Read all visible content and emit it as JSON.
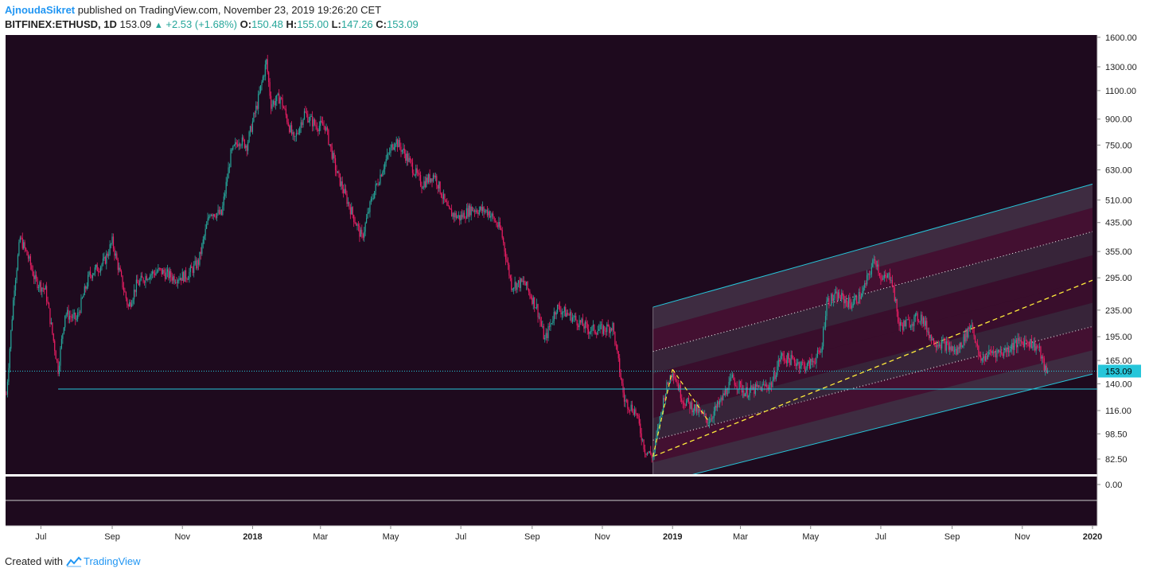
{
  "header": {
    "author": "AjnoudaSikret",
    "published_text": "published on TradingView.com, November 23, 2019 19:26:20 CET",
    "symbol": "BITFINEX:ETHUSD, 1D",
    "last": "153.09",
    "change": "+2.53 (+1.68%)",
    "o_label": "O:",
    "o": "150.48",
    "h_label": "H:",
    "h": "155.00",
    "l_label": "L:",
    "l": "147.26",
    "c_label": "C:",
    "c": "153.09"
  },
  "footer": {
    "created_with": "Created with",
    "brand": "TradingView"
  },
  "colors": {
    "background": "#1e0a1e",
    "up": "#26a69a",
    "down": "#e91e63",
    "channel_edge": "#26c6da",
    "median": "#ffeb3b",
    "price_label_bg": "#26c6da",
    "axis_text": "#222222"
  },
  "chart_data": {
    "type": "candlestick",
    "scale": "log",
    "price_axis_labels": [
      "1600.00",
      "1300.00",
      "1100.00",
      "900.00",
      "750.00",
      "630.00",
      "510.00",
      "435.00",
      "355.00",
      "295.00",
      "235.00",
      "195.00",
      "165.00",
      "140.00",
      "116.00",
      "98.50",
      "82.50",
      "0.00"
    ],
    "time_axis_labels": [
      "Jul",
      "Sep",
      "Nov",
      "2018",
      "Mar",
      "May",
      "Jul",
      "Sep",
      "Nov",
      "2019",
      "Mar",
      "May",
      "Jul",
      "Sep",
      "Nov",
      "2020"
    ],
    "time_axis_dates": [
      "2017-07-01",
      "2017-09-01",
      "2017-11-01",
      "2018-01-01",
      "2018-03-01",
      "2018-05-01",
      "2018-07-01",
      "2018-09-01",
      "2018-11-01",
      "2019-01-01",
      "2019-03-01",
      "2019-05-01",
      "2019-07-01",
      "2019-09-01",
      "2019-11-01",
      "2020-01-01"
    ],
    "current_price_label": "153.09",
    "current_price": 153.09,
    "support_level": 135,
    "close_series": [
      {
        "date": "2017-06-01",
        "price": 130
      },
      {
        "date": "2017-06-08",
        "price": 280
      },
      {
        "date": "2017-06-13",
        "price": 390
      },
      {
        "date": "2017-06-20",
        "price": 340
      },
      {
        "date": "2017-06-26",
        "price": 290
      },
      {
        "date": "2017-07-05",
        "price": 270
      },
      {
        "date": "2017-07-16",
        "price": 155
      },
      {
        "date": "2017-07-22",
        "price": 230
      },
      {
        "date": "2017-08-01",
        "price": 220
      },
      {
        "date": "2017-08-12",
        "price": 300
      },
      {
        "date": "2017-08-25",
        "price": 330
      },
      {
        "date": "2017-09-01",
        "price": 380
      },
      {
        "date": "2017-09-08",
        "price": 300
      },
      {
        "date": "2017-09-15",
        "price": 240
      },
      {
        "date": "2017-09-22",
        "price": 280
      },
      {
        "date": "2017-10-01",
        "price": 300
      },
      {
        "date": "2017-10-12",
        "price": 310
      },
      {
        "date": "2017-10-25",
        "price": 295
      },
      {
        "date": "2017-11-05",
        "price": 300
      },
      {
        "date": "2017-11-15",
        "price": 330
      },
      {
        "date": "2017-11-25",
        "price": 470
      },
      {
        "date": "2017-12-05",
        "price": 460
      },
      {
        "date": "2017-12-13",
        "price": 700
      },
      {
        "date": "2017-12-20",
        "price": 780
      },
      {
        "date": "2017-12-27",
        "price": 750
      },
      {
        "date": "2018-01-05",
        "price": 1000
      },
      {
        "date": "2018-01-13",
        "price": 1350
      },
      {
        "date": "2018-01-17",
        "price": 1000
      },
      {
        "date": "2018-01-25",
        "price": 1050
      },
      {
        "date": "2018-02-06",
        "price": 770
      },
      {
        "date": "2018-02-15",
        "price": 940
      },
      {
        "date": "2018-02-25",
        "price": 860
      },
      {
        "date": "2018-03-05",
        "price": 860
      },
      {
        "date": "2018-03-15",
        "price": 620
      },
      {
        "date": "2018-03-25",
        "price": 500
      },
      {
        "date": "2018-04-06",
        "price": 390
      },
      {
        "date": "2018-04-15",
        "price": 520
      },
      {
        "date": "2018-04-25",
        "price": 650
      },
      {
        "date": "2018-05-05",
        "price": 780
      },
      {
        "date": "2018-05-15",
        "price": 690
      },
      {
        "date": "2018-05-28",
        "price": 570
      },
      {
        "date": "2018-06-08",
        "price": 610
      },
      {
        "date": "2018-06-20",
        "price": 470
      },
      {
        "date": "2018-06-30",
        "price": 450
      },
      {
        "date": "2018-07-10",
        "price": 480
      },
      {
        "date": "2018-07-25",
        "price": 470
      },
      {
        "date": "2018-08-05",
        "price": 410
      },
      {
        "date": "2018-08-14",
        "price": 280
      },
      {
        "date": "2018-08-25",
        "price": 285
      },
      {
        "date": "2018-09-05",
        "price": 240
      },
      {
        "date": "2018-09-12",
        "price": 190
      },
      {
        "date": "2018-09-22",
        "price": 240
      },
      {
        "date": "2018-10-05",
        "price": 225
      },
      {
        "date": "2018-10-20",
        "price": 205
      },
      {
        "date": "2018-11-01",
        "price": 205
      },
      {
        "date": "2018-11-10",
        "price": 210
      },
      {
        "date": "2018-11-20",
        "price": 125
      },
      {
        "date": "2018-11-30",
        "price": 115
      },
      {
        "date": "2018-12-08",
        "price": 88
      },
      {
        "date": "2018-12-15",
        "price": 84
      },
      {
        "date": "2018-12-25",
        "price": 130
      },
      {
        "date": "2019-01-01",
        "price": 155
      },
      {
        "date": "2019-01-10",
        "price": 125
      },
      {
        "date": "2019-01-20",
        "price": 118
      },
      {
        "date": "2019-02-01",
        "price": 108
      },
      {
        "date": "2019-02-12",
        "price": 124
      },
      {
        "date": "2019-02-22",
        "price": 145
      },
      {
        "date": "2019-03-05",
        "price": 132
      },
      {
        "date": "2019-03-15",
        "price": 135
      },
      {
        "date": "2019-03-28",
        "price": 140
      },
      {
        "date": "2019-04-05",
        "price": 170
      },
      {
        "date": "2019-04-15",
        "price": 165
      },
      {
        "date": "2019-04-28",
        "price": 158
      },
      {
        "date": "2019-05-10",
        "price": 175
      },
      {
        "date": "2019-05-15",
        "price": 250
      },
      {
        "date": "2019-05-25",
        "price": 260
      },
      {
        "date": "2019-06-05",
        "price": 245
      },
      {
        "date": "2019-06-15",
        "price": 265
      },
      {
        "date": "2019-06-26",
        "price": 340
      },
      {
        "date": "2019-07-02",
        "price": 290
      },
      {
        "date": "2019-07-10",
        "price": 300
      },
      {
        "date": "2019-07-17",
        "price": 210
      },
      {
        "date": "2019-07-25",
        "price": 215
      },
      {
        "date": "2019-08-05",
        "price": 225
      },
      {
        "date": "2019-08-15",
        "price": 190
      },
      {
        "date": "2019-08-25",
        "price": 185
      },
      {
        "date": "2019-09-05",
        "price": 175
      },
      {
        "date": "2019-09-18",
        "price": 215
      },
      {
        "date": "2019-09-25",
        "price": 165
      },
      {
        "date": "2019-10-05",
        "price": 175
      },
      {
        "date": "2019-10-15",
        "price": 175
      },
      {
        "date": "2019-10-25",
        "price": 185
      },
      {
        "date": "2019-11-05",
        "price": 190
      },
      {
        "date": "2019-11-15",
        "price": 180
      },
      {
        "date": "2019-11-22",
        "price": 150
      },
      {
        "date": "2019-11-23",
        "price": 153
      }
    ],
    "regression_channel": {
      "start_date": "2018-12-15",
      "end_date": "2020-01-01",
      "median_start": 84,
      "median_end": 290,
      "upper_start": 240,
      "upper_end": 570,
      "lower_start": 69,
      "lower_end": 150
    },
    "overlays": [
      "regression channel (outer cyan bounds)",
      "dotted inner channel lines",
      "dashed median line",
      "horizontal support line at ~135"
    ]
  }
}
